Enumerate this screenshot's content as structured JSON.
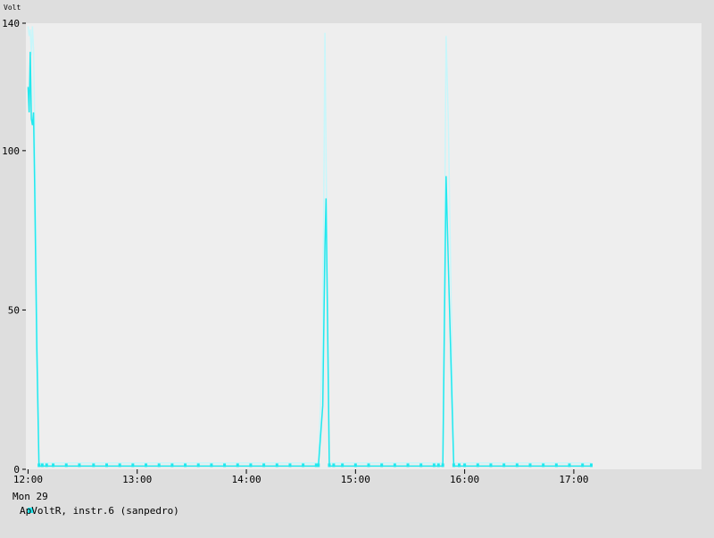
{
  "chart_data": {
    "type": "line",
    "title": "",
    "xlabel": "",
    "ylabel": "Volt",
    "ylim": [
      0,
      140
    ],
    "xlim_hours": [
      11.98,
      18.17
    ],
    "date_label": "Mon 29",
    "y_ticks": [
      {
        "value": 0,
        "label": "0"
      },
      {
        "value": 50,
        "label": "50"
      },
      {
        "value": 100,
        "label": "100"
      },
      {
        "value": 140,
        "label": "140"
      }
    ],
    "x_ticks": [
      {
        "value": 12.0,
        "label": "12:00"
      },
      {
        "value": 13.0,
        "label": "13:00"
      },
      {
        "value": 14.0,
        "label": "14:00"
      },
      {
        "value": 15.0,
        "label": "15:00"
      },
      {
        "value": 16.0,
        "label": "16:00"
      },
      {
        "value": 17.0,
        "label": "17:00"
      }
    ],
    "grid": false,
    "legend_position": "bottom-left",
    "colors": {
      "plot_background": "#eeeeee",
      "page_background": "#dedede",
      "series_line": "#22e8ee",
      "series_envelope": "#c8f6fa"
    },
    "series": [
      {
        "name": "ApVoltR, instr.6 (sanpedro)",
        "x": [
          12.0,
          12.01,
          12.02,
          12.03,
          12.04,
          12.05,
          12.06,
          12.08,
          12.1,
          12.13,
          12.17,
          12.23,
          12.35,
          12.47,
          12.6,
          12.72,
          12.84,
          12.96,
          13.08,
          13.2,
          13.32,
          13.44,
          13.56,
          13.68,
          13.8,
          13.92,
          14.04,
          14.16,
          14.28,
          14.4,
          14.52,
          14.64,
          14.66,
          14.7,
          14.72,
          14.73,
          14.76,
          14.8,
          14.88,
          15.0,
          15.12,
          15.24,
          15.36,
          15.48,
          15.6,
          15.72,
          15.76,
          15.8,
          15.83,
          15.85,
          15.9,
          15.95,
          16.0,
          16.12,
          16.24,
          16.36,
          16.48,
          16.6,
          16.72,
          16.84,
          16.96,
          17.08,
          17.16
        ],
        "y": [
          120,
          112,
          131,
          110,
          108,
          112,
          90,
          38,
          1,
          1,
          1,
          1,
          1,
          1,
          1,
          1,
          1,
          1,
          1,
          1,
          1,
          1,
          1,
          1,
          1,
          1,
          1,
          1,
          1,
          1,
          1,
          1,
          1,
          20,
          70,
          85,
          1,
          1,
          1,
          1,
          1,
          1,
          1,
          1,
          1,
          1,
          1,
          1,
          92,
          65,
          1,
          1,
          1,
          1,
          1,
          1,
          1,
          1,
          1,
          1,
          1,
          1,
          1
        ],
        "envelope_max": [
          139,
          136,
          138,
          130,
          139,
          132,
          110,
          60,
          2,
          2,
          2,
          2,
          2,
          2,
          2,
          2,
          2,
          2,
          2,
          2,
          2,
          2,
          2,
          2,
          2,
          2,
          2,
          2,
          2,
          2,
          2,
          2,
          2,
          40,
          137,
          100,
          2,
          2,
          2,
          2,
          2,
          2,
          2,
          2,
          2,
          2,
          2,
          2,
          136,
          110,
          2,
          2,
          2,
          2,
          2,
          2,
          2,
          2,
          2,
          2,
          2,
          2,
          2
        ]
      }
    ]
  }
}
